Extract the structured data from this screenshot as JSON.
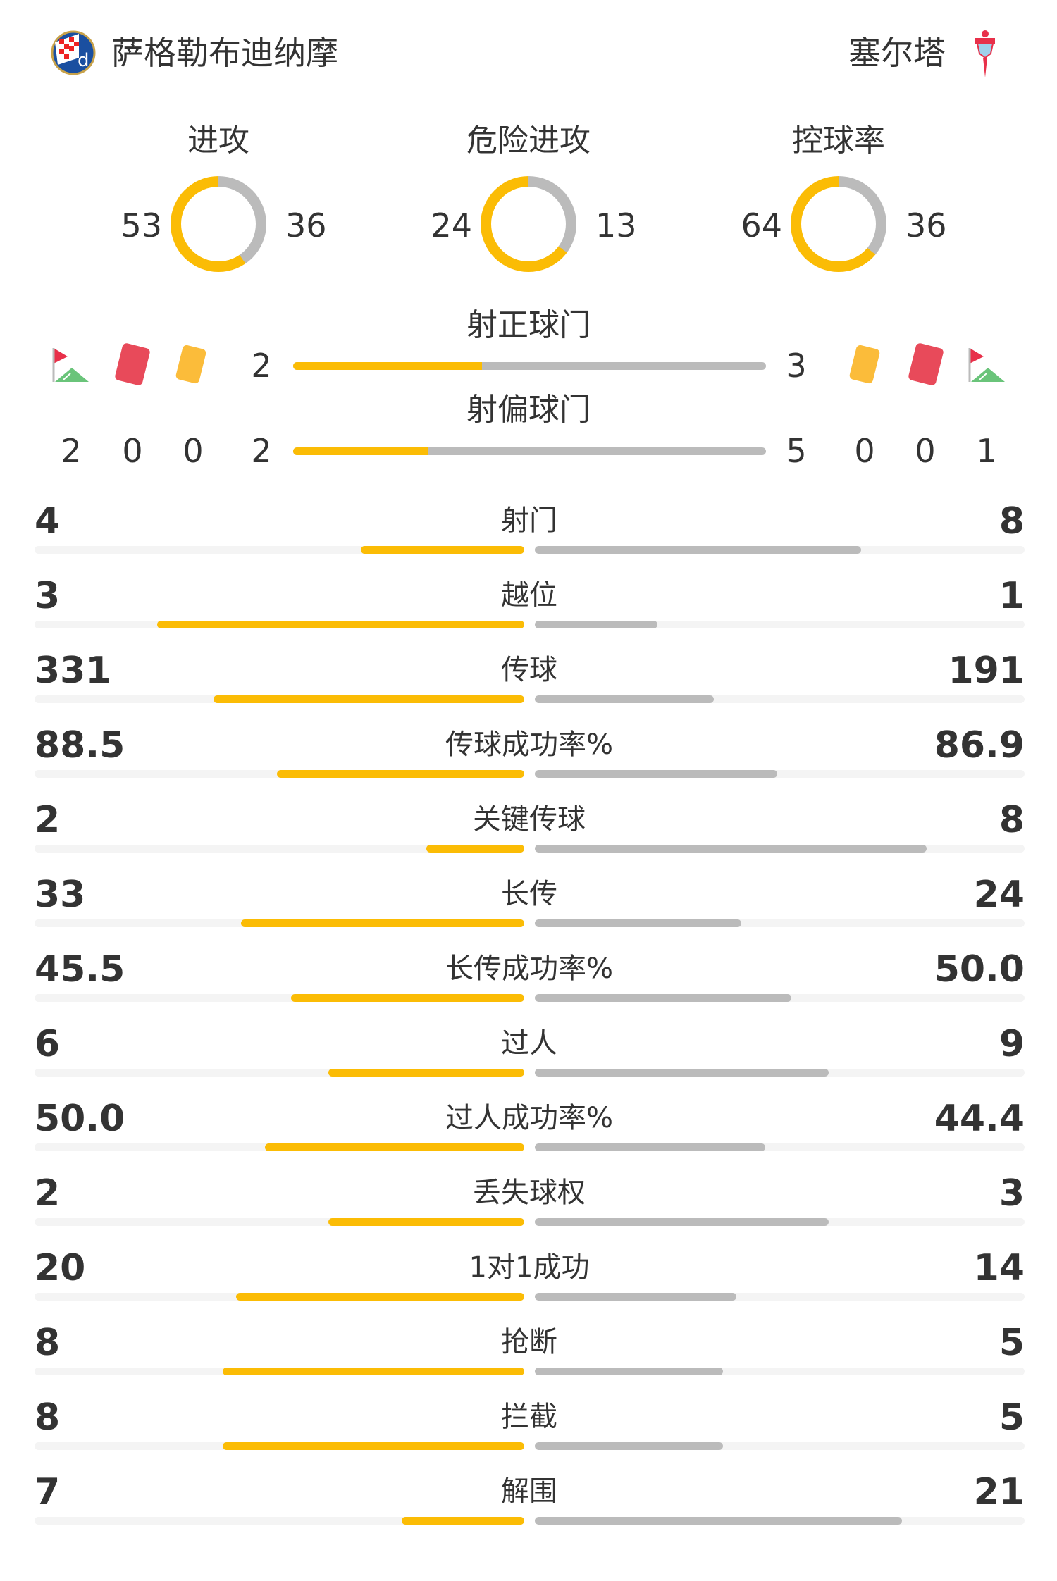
{
  "home": {
    "name": "萨格勒布迪纳摩",
    "logo": "dinamo-zagreb-crest"
  },
  "away": {
    "name": "塞尔塔",
    "logo": "celta-vigo-crest"
  },
  "colors": {
    "home": "#fbbc05",
    "away": "#bbbbbb",
    "track": "#f4f4f4",
    "text": "#333333",
    "red_card": "#e84a5a",
    "yellow_card": "#fbbc3a",
    "corner_green": "#6ac47a"
  },
  "donuts": [
    {
      "title": "进攻",
      "home": 53,
      "away": 36
    },
    {
      "title": "危险进攻",
      "home": 24,
      "away": 13
    },
    {
      "title": "控球率",
      "home": 64,
      "away": 36
    }
  ],
  "shots": [
    {
      "label": "射正球门",
      "home": 2,
      "away": 3
    },
    {
      "label": "射偏球门",
      "home": 2,
      "away": 5
    }
  ],
  "counts": {
    "home": {
      "corners": 2,
      "red_cards": 0,
      "yellow_cards": 0
    },
    "away": {
      "corners": 1,
      "red_cards": 0,
      "yellow_cards": 0
    }
  },
  "stats": [
    {
      "label": "射门",
      "home": "4",
      "away": "8"
    },
    {
      "label": "越位",
      "home": "3",
      "away": "1"
    },
    {
      "label": "传球",
      "home": "331",
      "away": "191"
    },
    {
      "label": "传球成功率%",
      "home": "88.5",
      "away": "86.9"
    },
    {
      "label": "关键传球",
      "home": "2",
      "away": "8"
    },
    {
      "label": "长传",
      "home": "33",
      "away": "24"
    },
    {
      "label": "长传成功率%",
      "home": "45.5",
      "away": "50.0"
    },
    {
      "label": "过人",
      "home": "6",
      "away": "9"
    },
    {
      "label": "过人成功率%",
      "home": "50.0",
      "away": "44.4"
    },
    {
      "label": "丢失球权",
      "home": "2",
      "away": "3"
    },
    {
      "label": "1对1成功",
      "home": "20",
      "away": "14"
    },
    {
      "label": "抢断",
      "home": "8",
      "away": "5"
    },
    {
      "label": "拦截",
      "home": "8",
      "away": "5"
    },
    {
      "label": "解围",
      "home": "7",
      "away": "21"
    }
  ]
}
